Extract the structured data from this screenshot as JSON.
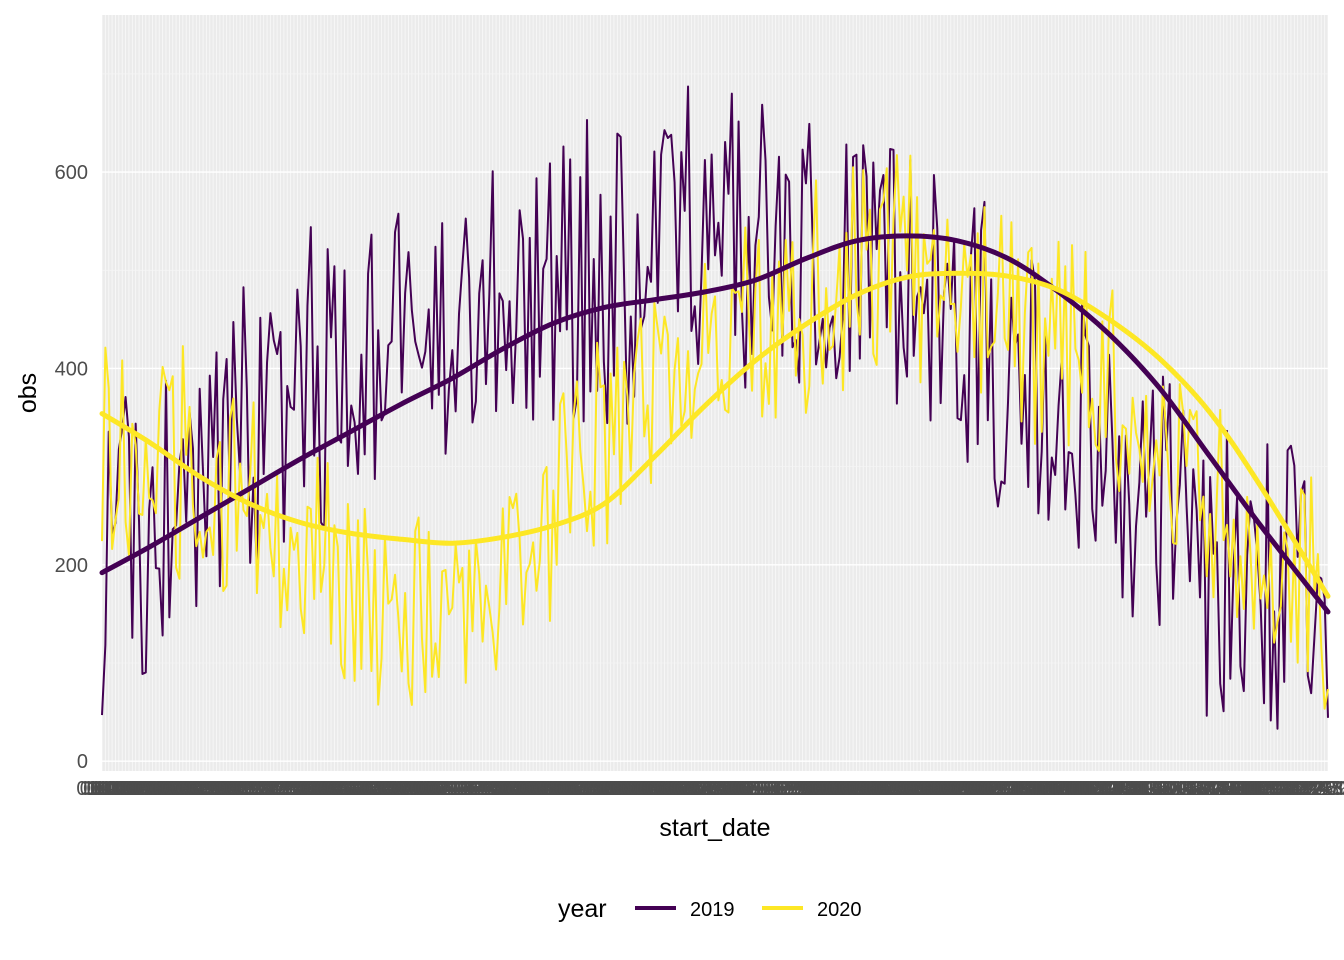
{
  "chart_data": {
    "type": "line",
    "xlabel": "start_date",
    "ylabel": "obs",
    "ylim": [
      -10,
      760
    ],
    "y_ticks": [
      "0",
      "200",
      "400",
      "600"
    ],
    "x_tick_labels_note": "",
    "grid": true,
    "legend": {
      "title": "year",
      "position": "bottom",
      "entries": [
        {
          "label": "2019",
          "color": "#440154"
        },
        {
          "label": "2020",
          "color": "#FDE725"
        }
      ]
    },
    "x": {
      "start": "01-01",
      "end": "12-31",
      "n_days": 365
    },
    "series": [
      {
        "name": "2019",
        "color": "#440154",
        "keypoints": [
          [
            1,
            195
          ],
          [
            20,
            260
          ],
          [
            40,
            320
          ],
          [
            60,
            370
          ],
          [
            80,
            420
          ],
          [
            100,
            450
          ],
          [
            120,
            468
          ],
          [
            140,
            480
          ],
          [
            160,
            500
          ],
          [
            180,
            530
          ],
          [
            200,
            535
          ],
          [
            220,
            525
          ],
          [
            240,
            490
          ],
          [
            260,
            440
          ],
          [
            280,
            380
          ],
          [
            300,
            310
          ],
          [
            320,
            230
          ],
          [
            340,
            175
          ],
          [
            365,
            150
          ]
        ],
        "smooth": [
          [
            1,
            192
          ],
          [
            15,
            218
          ],
          [
            30,
            248
          ],
          [
            45,
            278
          ],
          [
            60,
            308
          ],
          [
            75,
            336
          ],
          [
            90,
            364
          ],
          [
            105,
            390
          ],
          [
            120,
            420
          ],
          [
            135,
            446
          ],
          [
            150,
            462
          ],
          [
            165,
            470
          ],
          [
            180,
            478
          ],
          [
            195,
            490
          ],
          [
            210,
            512
          ],
          [
            225,
            530
          ],
          [
            240,
            535
          ],
          [
            255,
            530
          ],
          [
            270,
            512
          ],
          [
            285,
            478
          ],
          [
            300,
            435
          ],
          [
            315,
            380
          ],
          [
            330,
            310
          ],
          [
            345,
            240
          ],
          [
            365,
            152
          ]
        ]
      },
      {
        "name": "2020",
        "color": "#FDE725",
        "keypoints": [
          [
            1,
            330
          ],
          [
            30,
            300
          ],
          [
            60,
            240
          ],
          [
            80,
            150
          ],
          [
            100,
            140
          ],
          [
            120,
            180
          ],
          [
            140,
            290
          ],
          [
            160,
            340
          ],
          [
            180,
            410
          ],
          [
            200,
            450
          ],
          [
            220,
            490
          ],
          [
            240,
            500
          ],
          [
            260,
            480
          ],
          [
            280,
            430
          ],
          [
            300,
            380
          ],
          [
            320,
            300
          ],
          [
            340,
            210
          ],
          [
            365,
            170
          ]
        ],
        "smooth": [
          [
            1,
            354
          ],
          [
            15,
            325
          ],
          [
            30,
            290
          ],
          [
            45,
            262
          ],
          [
            60,
            243
          ],
          [
            75,
            232
          ],
          [
            90,
            226
          ],
          [
            105,
            222
          ],
          [
            120,
            228
          ],
          [
            135,
            240
          ],
          [
            150,
            262
          ],
          [
            165,
            310
          ],
          [
            180,
            362
          ],
          [
            195,
            408
          ],
          [
            210,
            445
          ],
          [
            225,
            475
          ],
          [
            240,
            493
          ],
          [
            255,
            497
          ],
          [
            270,
            494
          ],
          [
            285,
            480
          ],
          [
            300,
            450
          ],
          [
            315,
            410
          ],
          [
            330,
            355
          ],
          [
            345,
            280
          ],
          [
            365,
            168
          ]
        ]
      }
    ]
  }
}
